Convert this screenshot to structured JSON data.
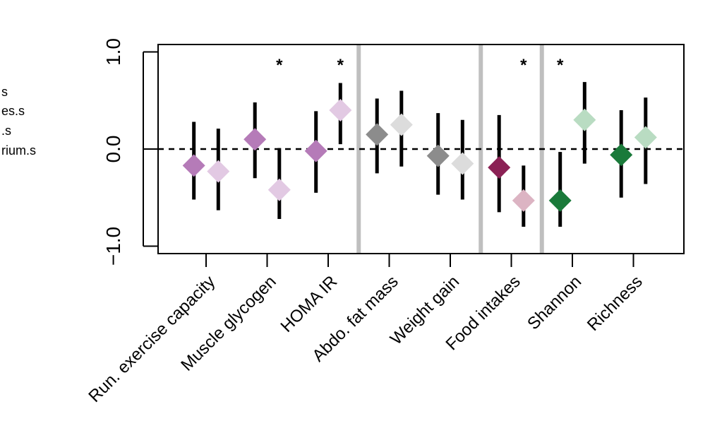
{
  "legend_fragments": [
    "s",
    "es.s",
    ".s",
    "rium.s"
  ],
  "chart_data": {
    "type": "scatter",
    "ylim": [
      -1.2,
      1.07
    ],
    "yticks": [
      1.0,
      0.0,
      -1.0
    ],
    "ytick_labels": [
      "1.0",
      "0.0",
      "−1.0"
    ],
    "reference_line_y": 0.0,
    "categories": [
      "Run. exercise capacity",
      "Muscle glycogen",
      "HOMA IR",
      "Abdo. fat mass",
      "Weight gain",
      "Food intakes",
      "Shannon",
      "Richness"
    ],
    "category_x": [
      1,
      2,
      3,
      4,
      5,
      6,
      7,
      8
    ],
    "separators_x": [
      3.5,
      5.5,
      6.5
    ],
    "points": [
      {
        "x": 0.8,
        "y": -0.17,
        "low": -0.52,
        "high": 0.28,
        "color": "#b57bb8",
        "sig": false
      },
      {
        "x": 1.2,
        "y": -0.23,
        "low": -0.63,
        "high": 0.21,
        "color": "#e2c9e3",
        "sig": false
      },
      {
        "x": 1.8,
        "y": 0.1,
        "low": -0.3,
        "high": 0.48,
        "color": "#b57bb8",
        "sig": false
      },
      {
        "x": 2.2,
        "y": -0.42,
        "low": -0.72,
        "high": 0.01,
        "color": "#e2c9e3",
        "sig": true
      },
      {
        "x": 2.8,
        "y": -0.02,
        "low": -0.45,
        "high": 0.39,
        "color": "#b57bb8",
        "sig": false
      },
      {
        "x": 3.2,
        "y": 0.4,
        "low": 0.05,
        "high": 0.68,
        "color": "#e2c9e3",
        "sig": true
      },
      {
        "x": 3.8,
        "y": 0.15,
        "low": -0.25,
        "high": 0.52,
        "color": "#8c8c8c",
        "sig": false
      },
      {
        "x": 4.2,
        "y": 0.25,
        "low": -0.18,
        "high": 0.6,
        "color": "#dcdcdc",
        "sig": false
      },
      {
        "x": 4.8,
        "y": -0.07,
        "low": -0.47,
        "high": 0.37,
        "color": "#8c8c8c",
        "sig": false
      },
      {
        "x": 5.2,
        "y": -0.15,
        "low": -0.52,
        "high": 0.3,
        "color": "#dcdcdc",
        "sig": false
      },
      {
        "x": 5.8,
        "y": -0.19,
        "low": -0.65,
        "high": 0.35,
        "color": "#8b2155",
        "sig": false
      },
      {
        "x": 6.2,
        "y": -0.53,
        "low": -0.8,
        "high": -0.17,
        "color": "#dcb4c3",
        "sig": true
      },
      {
        "x": 6.8,
        "y": -0.53,
        "low": -0.8,
        "high": -0.03,
        "color": "#1a7a3a",
        "sig": true
      },
      {
        "x": 7.2,
        "y": 0.3,
        "low": -0.15,
        "high": 0.69,
        "color": "#b9dcc2",
        "sig": false
      },
      {
        "x": 7.8,
        "y": -0.06,
        "low": -0.5,
        "high": 0.4,
        "color": "#1a7a3a",
        "sig": false
      },
      {
        "x": 8.2,
        "y": 0.12,
        "low": -0.36,
        "high": 0.53,
        "color": "#b9dcc2",
        "sig": false
      }
    ],
    "sig_marker": "*",
    "colors": {
      "line": "#000000",
      "separator": "#bfbfbf",
      "frame": "#000000"
    }
  }
}
